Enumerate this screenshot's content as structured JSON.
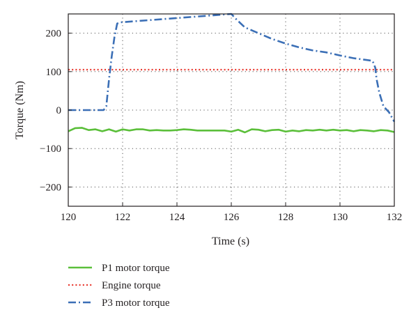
{
  "chart_data": {
    "type": "line",
    "xlabel": "Time (s)",
    "ylabel": "Torque (Nm)",
    "xlim": [
      120,
      132
    ],
    "ylim": [
      -250,
      250
    ],
    "x_ticks": [
      120,
      122,
      124,
      126,
      128,
      130,
      132
    ],
    "y_ticks": [
      200,
      100,
      0,
      -100,
      -200
    ],
    "y_tick_labels": [
      "200",
      "100",
      "0",
      "−100",
      "−200"
    ],
    "grid": "dotted",
    "legend_position": "below",
    "series": [
      {
        "name": "P1 motor torque",
        "color": "#5bbf3a",
        "style": "solid",
        "points": [
          [
            120.0,
            -55
          ],
          [
            120.25,
            -47
          ],
          [
            120.5,
            -46
          ],
          [
            120.75,
            -52
          ],
          [
            121.0,
            -50
          ],
          [
            121.25,
            -55
          ],
          [
            121.5,
            -50
          ],
          [
            121.75,
            -56
          ],
          [
            122.0,
            -50
          ],
          [
            122.25,
            -53
          ],
          [
            122.5,
            -50
          ],
          [
            122.75,
            -50
          ],
          [
            123.0,
            -53
          ],
          [
            123.25,
            -52
          ],
          [
            123.5,
            -53
          ],
          [
            123.75,
            -53
          ],
          [
            124.0,
            -52
          ],
          [
            124.25,
            -50
          ],
          [
            124.5,
            -51
          ],
          [
            124.75,
            -53
          ],
          [
            125.0,
            -53
          ],
          [
            125.25,
            -53
          ],
          [
            125.5,
            -53
          ],
          [
            125.75,
            -53
          ],
          [
            126.0,
            -56
          ],
          [
            126.25,
            -51
          ],
          [
            126.5,
            -58
          ],
          [
            126.75,
            -50
          ],
          [
            127.0,
            -51
          ],
          [
            127.25,
            -55
          ],
          [
            127.5,
            -52
          ],
          [
            127.75,
            -51
          ],
          [
            128.0,
            -56
          ],
          [
            128.25,
            -53
          ],
          [
            128.5,
            -55
          ],
          [
            128.75,
            -52
          ],
          [
            129.0,
            -53
          ],
          [
            129.25,
            -51
          ],
          [
            129.5,
            -53
          ],
          [
            129.75,
            -51
          ],
          [
            130.0,
            -53
          ],
          [
            130.25,
            -52
          ],
          [
            130.5,
            -55
          ],
          [
            130.75,
            -52
          ],
          [
            131.0,
            -53
          ],
          [
            131.25,
            -55
          ],
          [
            131.5,
            -52
          ],
          [
            131.75,
            -53
          ],
          [
            132.0,
            -57
          ]
        ]
      },
      {
        "name": "Engine torque",
        "color": "#e8362d",
        "style": "dotted",
        "points": [
          [
            120.0,
            105
          ],
          [
            132.0,
            105
          ]
        ]
      },
      {
        "name": "P3 motor torque",
        "color": "#3b6fb6",
        "style": "dashdot",
        "points": [
          [
            120.0,
            0
          ],
          [
            121.1,
            0
          ],
          [
            121.3,
            0
          ],
          [
            121.4,
            10
          ],
          [
            121.5,
            80
          ],
          [
            121.6,
            140
          ],
          [
            121.7,
            190
          ],
          [
            121.8,
            225
          ],
          [
            121.9,
            228
          ],
          [
            126.0,
            250
          ],
          [
            126.2,
            235
          ],
          [
            126.5,
            215
          ],
          [
            127.0,
            200
          ],
          [
            127.5,
            185
          ],
          [
            128.0,
            173
          ],
          [
            128.5,
            163
          ],
          [
            129.0,
            155
          ],
          [
            129.5,
            150
          ],
          [
            130.0,
            142
          ],
          [
            130.5,
            135
          ],
          [
            131.0,
            130
          ],
          [
            131.2,
            128
          ],
          [
            131.3,
            110
          ],
          [
            131.35,
            80
          ],
          [
            131.45,
            45
          ],
          [
            131.6,
            10
          ],
          [
            131.8,
            -5
          ],
          [
            132.0,
            -30
          ]
        ]
      }
    ]
  }
}
